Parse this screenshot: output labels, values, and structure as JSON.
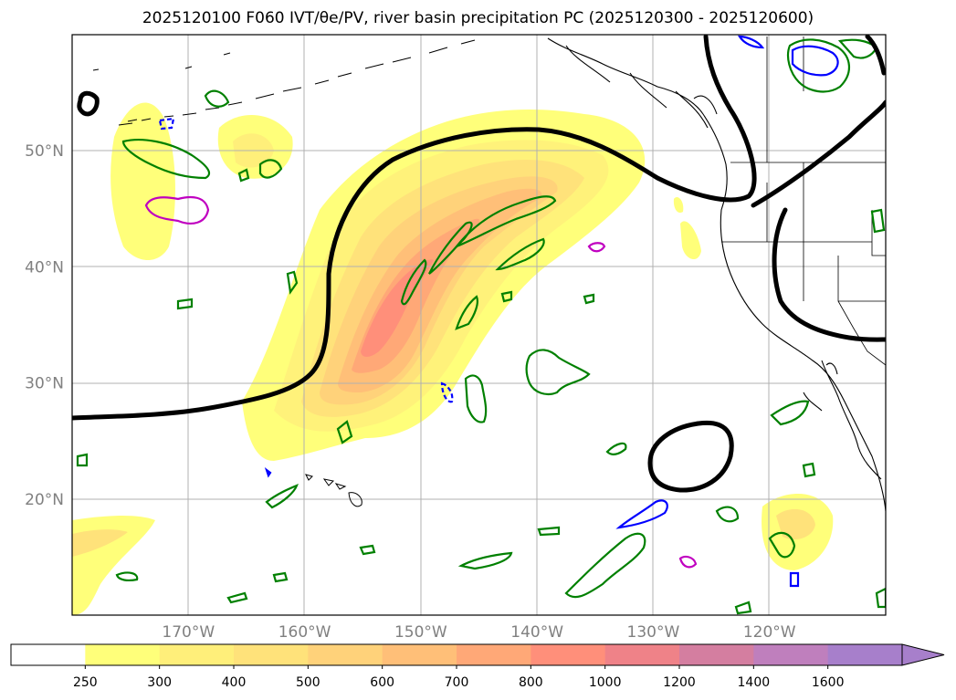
{
  "title": "2025120100 F060 IVT/θe/PV, river basin precipitation PC (2025120300 - 2025120600)",
  "map": {
    "lon_range": [
      -180,
      -110
    ],
    "lat_range": [
      10,
      60
    ],
    "lat_labels": [
      {
        "lat": 50,
        "text": "50°N"
      },
      {
        "lat": 40,
        "text": "40°N"
      },
      {
        "lat": 30,
        "text": "30°N"
      },
      {
        "lat": 20,
        "text": "20°N"
      }
    ],
    "lon_labels": [
      {
        "lon": -170,
        "text": "170°W"
      },
      {
        "lon": -160,
        "text": "160°W"
      },
      {
        "lon": -150,
        "text": "150°W"
      },
      {
        "lon": -140,
        "text": "140°W"
      },
      {
        "lon": -130,
        "text": "130°W"
      },
      {
        "lon": -120,
        "text": "120°W"
      }
    ],
    "colors": {
      "theta_e_contour": "#000000",
      "pv_positive": "#008000",
      "pv_negative": "#0000ff",
      "pv_magenta": "#c000c0",
      "grid": "#b0b0b0",
      "coast": "#000000"
    }
  },
  "colorbar": {
    "levels": [
      "250",
      "300",
      "400",
      "500",
      "600",
      "700",
      "800",
      "1000",
      "1200",
      "1400",
      "1600"
    ],
    "colors": [
      "#ffffff",
      "#ffff7a",
      "#ffef7a",
      "#ffe27a",
      "#ffd27a",
      "#ffbf78",
      "#ffa877",
      "#ff8f7a",
      "#ef8288",
      "#d47ea0",
      "#bf7fbd",
      "#a77fcb"
    ],
    "extend": "max"
  }
}
